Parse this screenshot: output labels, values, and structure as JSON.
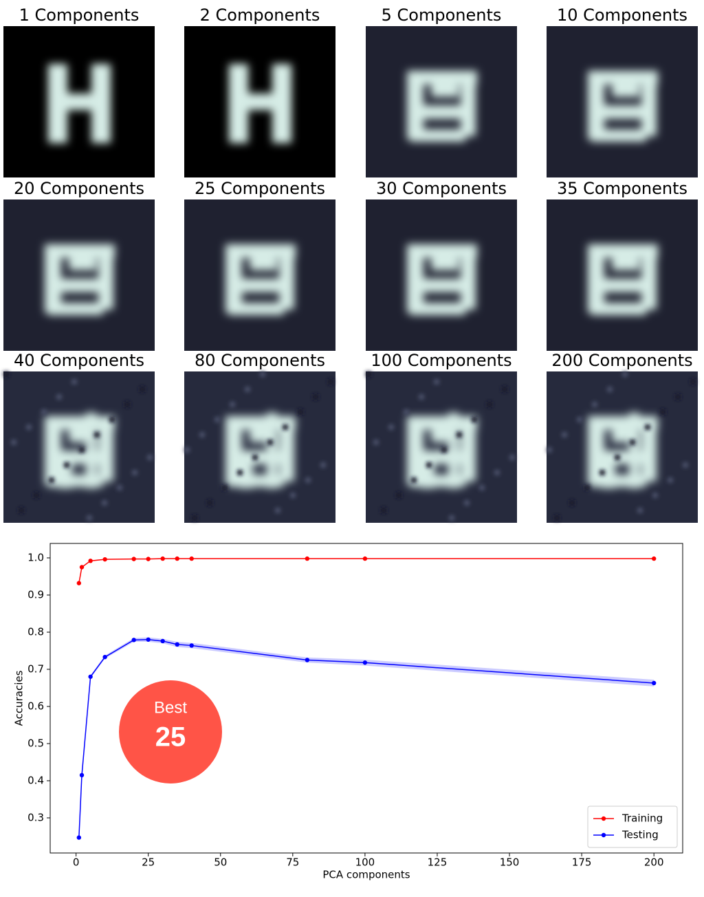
{
  "panels": [
    {
      "title": "1 Components"
    },
    {
      "title": "2 Components"
    },
    {
      "title": "5 Components"
    },
    {
      "title": "10 Components"
    },
    {
      "title": "20 Components"
    },
    {
      "title": "25 Components"
    },
    {
      "title": "30 Components"
    },
    {
      "title": "35 Components"
    },
    {
      "title": "40 Components"
    },
    {
      "title": "80 Components"
    },
    {
      "title": "100 Components"
    },
    {
      "title": "200 Components"
    }
  ],
  "chart_data": {
    "type": "line",
    "x_label": "PCA components",
    "y_label": "Accuracies",
    "x": [
      1,
      2,
      5,
      10,
      20,
      25,
      30,
      35,
      40,
      80,
      100,
      200
    ],
    "series": [
      {
        "name": "Training",
        "color": "#ff0000",
        "values": [
          0.932,
          0.975,
          0.992,
          0.996,
          0.997,
          0.997,
          0.998,
          0.998,
          0.998,
          0.998,
          0.998,
          0.998
        ]
      },
      {
        "name": "Testing",
        "color": "#0000ff",
        "values": [
          0.247,
          0.415,
          0.68,
          0.733,
          0.779,
          0.78,
          0.776,
          0.767,
          0.764,
          0.725,
          0.718,
          0.663
        ],
        "errors": [
          0.003,
          0.003,
          0.004,
          0.004,
          0.005,
          0.006,
          0.006,
          0.007,
          0.007,
          0.007,
          0.008,
          0.009
        ]
      }
    ],
    "xlim": [
      -8.95,
      209.95
    ],
    "ylim": [
      0.2055,
      1.0389
    ],
    "xticks": [
      0,
      25,
      50,
      75,
      100,
      125,
      150,
      175,
      200
    ],
    "yticks": [
      0.3,
      0.4,
      0.5,
      0.6,
      0.7,
      0.8,
      0.9,
      {
        "value": 1,
        "label": "1.0"
      }
    ],
    "legend": "lower right",
    "annotation": {
      "text": "Best",
      "value": 25,
      "color": "#ff5447"
    }
  }
}
